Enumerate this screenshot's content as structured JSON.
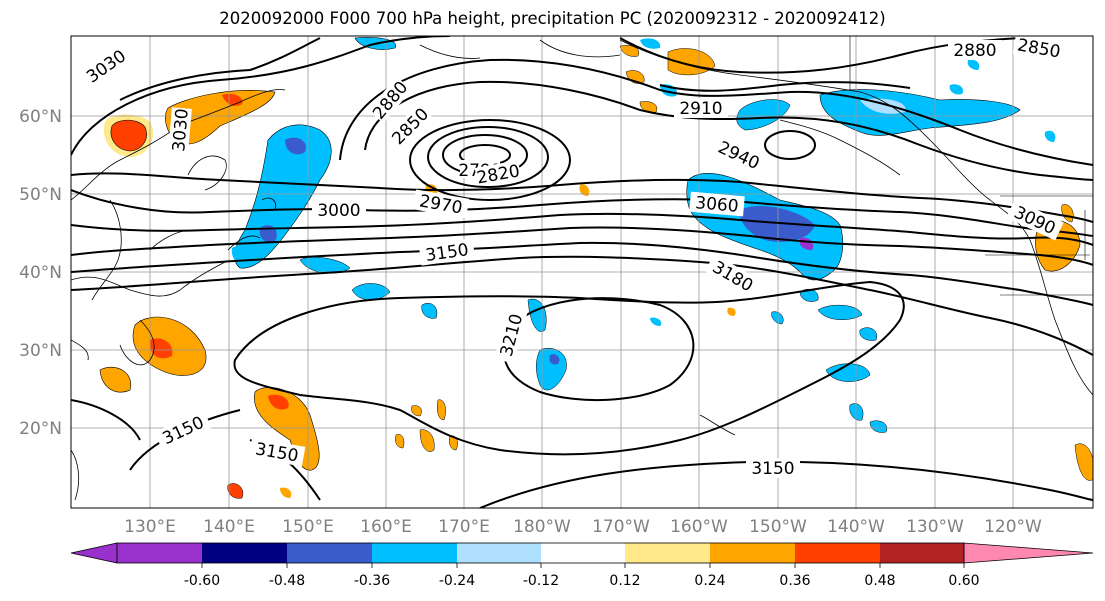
{
  "title": "2020092000 F000 700 hPa height, precipitation PC (2020092312 - 2020092412)",
  "map": {
    "lat_labels": [
      "60°N",
      "50°N",
      "40°N",
      "30°N",
      "20°N"
    ],
    "lon_labels": [
      "130°E",
      "140°E",
      "150°E",
      "160°E",
      "170°E",
      "180°W",
      "170°W",
      "160°W",
      "150°W",
      "140°W",
      "130°W",
      "120°W"
    ],
    "contour_labels": [
      "3030",
      "2880",
      "2850",
      "3030",
      "2880",
      "2850",
      "2910",
      "2940",
      "2790",
      "2820",
      "2970",
      "3000",
      "3060",
      "3090",
      "3150",
      "3180",
      "3210",
      "3150",
      "3150",
      "3150"
    ]
  },
  "colorbar": {
    "colors": [
      "#9932cc",
      "#000080",
      "#3a5bcc",
      "#00bfff",
      "#b0e0ff",
      "#ffffff",
      "#ffe98a",
      "#ffa500",
      "#ff4000",
      "#b22222",
      "#ff88b0"
    ],
    "tick_labels": [
      "-0.60",
      "-0.48",
      "-0.36",
      "-0.24",
      "-0.12",
      "0.12",
      "0.24",
      "0.36",
      "0.48",
      "0.60"
    ]
  }
}
